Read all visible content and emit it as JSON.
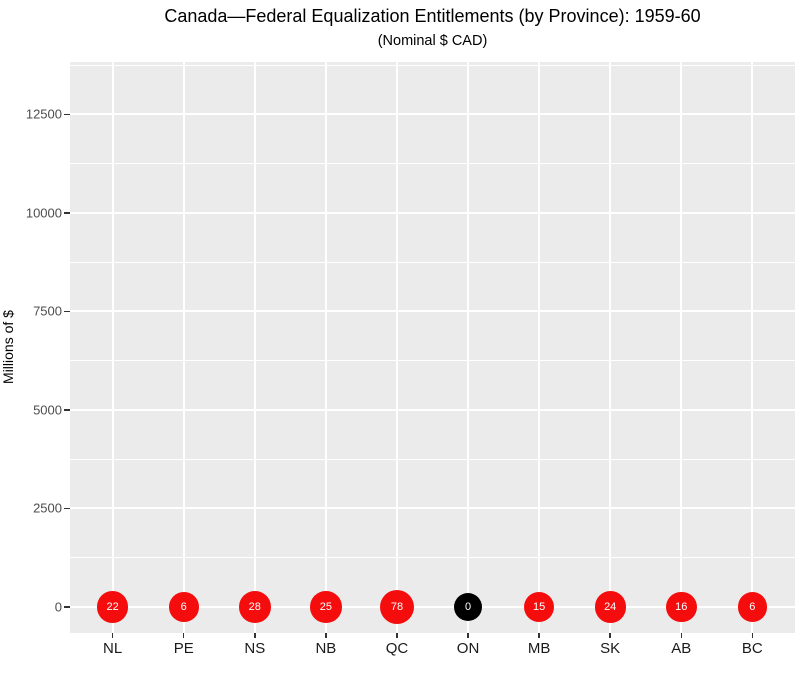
{
  "chart_data": {
    "type": "scatter",
    "title": "Canada—Federal Equalization Entitlements (by Province): 1959-60",
    "subtitle": "(Nominal $ CAD)",
    "xlabel": "",
    "ylabel": "Millions of $",
    "categories": [
      "NL",
      "PE",
      "NS",
      "NB",
      "QC",
      "ON",
      "MB",
      "SK",
      "AB",
      "BC"
    ],
    "values": [
      22,
      6,
      28,
      25,
      78,
      0,
      15,
      24,
      16,
      6
    ],
    "point_colors": [
      "#F50D0D",
      "#F50D0D",
      "#F50D0D",
      "#F50D0D",
      "#F50D0D",
      "#000000",
      "#F50D0D",
      "#F50D0D",
      "#F50D0D",
      "#F50D0D"
    ],
    "point_label_color": "#FFFFFF",
    "y_ticks": [
      0,
      2500,
      5000,
      7500,
      10000,
      12500
    ],
    "y_minor_ticks": [
      1250,
      3750,
      6250,
      8750,
      11250,
      13750
    ],
    "ylim": [
      -660,
      13832
    ],
    "grid": "on",
    "legend": "none",
    "panel_background": "#EBEBEB",
    "grid_color": "#FFFFFF"
  }
}
